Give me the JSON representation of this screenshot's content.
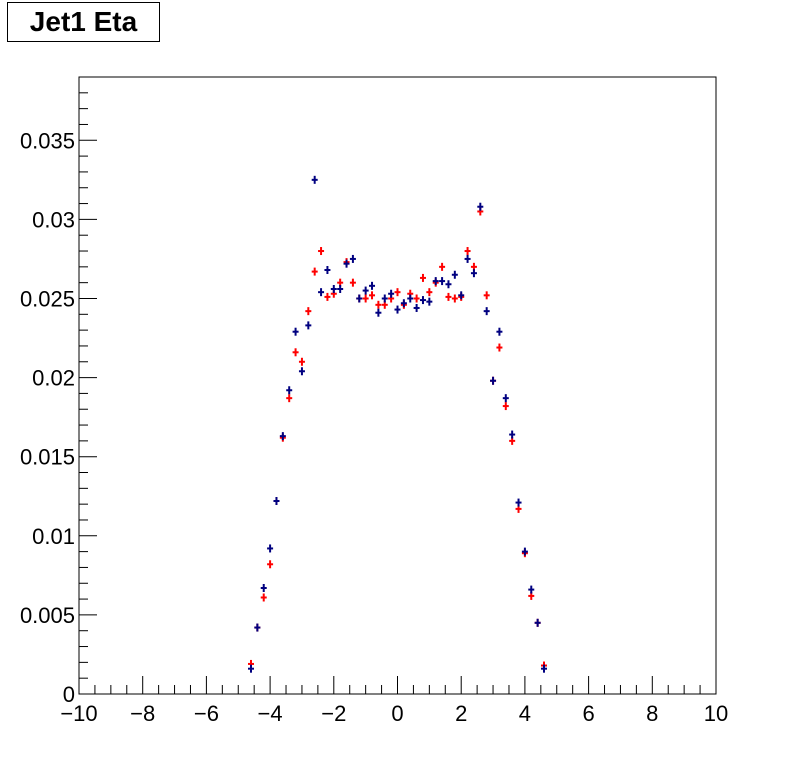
{
  "chart_data": {
    "type": "scatter",
    "title": "Jet1 Eta",
    "xlim": [
      -10,
      10
    ],
    "ylim": [
      0,
      0.039
    ],
    "x_tick_labels": [
      "−10",
      "−8",
      "−6",
      "−4",
      "−2",
      "0",
      "2",
      "4",
      "6",
      "8",
      "10"
    ],
    "x_tick_values": [
      -10,
      -8,
      -6,
      -4,
      -2,
      0,
      2,
      4,
      6,
      8,
      10
    ],
    "y_tick_labels": [
      "0",
      "0.005",
      "0.01",
      "0.015",
      "0.02",
      "0.025",
      "0.03",
      "0.035"
    ],
    "y_tick_values": [
      0,
      0.005,
      0.01,
      0.015,
      0.02,
      0.025,
      0.03,
      0.035
    ],
    "marker": "cross",
    "series": [
      {
        "color": "#ff0000",
        "x": [
          -4.6,
          -4.4,
          -4.2,
          -4.0,
          -3.8,
          -3.6,
          -3.4,
          -3.2,
          -3.0,
          -2.8,
          -2.6,
          -2.4,
          -2.2,
          -2.0,
          -1.8,
          -1.6,
          -1.4,
          -1.2,
          -1.0,
          -0.8,
          -0.6,
          -0.4,
          -0.2,
          0.0,
          0.2,
          0.4,
          0.6,
          0.8,
          1.0,
          1.2,
          1.4,
          1.6,
          1.8,
          2.0,
          2.2,
          2.4,
          2.6,
          2.8,
          3.0,
          3.2,
          3.4,
          3.6,
          3.8,
          4.0,
          4.2,
          4.4,
          4.6
        ],
        "y": [
          0.0019,
          0.0042,
          0.0061,
          0.0082,
          0.0122,
          0.0162,
          0.0187,
          0.0216,
          0.021,
          0.0242,
          0.0267,
          0.028,
          0.0251,
          0.0253,
          0.026,
          0.0273,
          0.026,
          0.025,
          0.025,
          0.0252,
          0.0246,
          0.0246,
          0.025,
          0.0254,
          0.0246,
          0.0253,
          0.025,
          0.0263,
          0.0254,
          0.026,
          0.027,
          0.0251,
          0.025,
          0.0251,
          0.028,
          0.027,
          0.0305,
          0.0252,
          0.0198,
          0.0219,
          0.0182,
          0.016,
          0.0117,
          0.0089,
          0.0062,
          0.0045,
          0.0018
        ]
      },
      {
        "color": "#000080",
        "x": [
          -4.6,
          -4.4,
          -4.2,
          -4.0,
          -3.8,
          -3.6,
          -3.4,
          -3.2,
          -3.0,
          -2.8,
          -2.6,
          -2.4,
          -2.2,
          -2.0,
          -1.8,
          -1.6,
          -1.4,
          -1.2,
          -1.0,
          -0.8,
          -0.6,
          -0.4,
          -0.2,
          0.0,
          0.2,
          0.4,
          0.6,
          0.8,
          1.0,
          1.2,
          1.4,
          1.6,
          1.8,
          2.0,
          2.2,
          2.4,
          2.6,
          2.8,
          3.0,
          3.2,
          3.4,
          3.6,
          3.8,
          4.0,
          4.2,
          4.4,
          4.6
        ],
        "y": [
          0.0016,
          0.0042,
          0.0067,
          0.0092,
          0.0122,
          0.0163,
          0.0192,
          0.0229,
          0.0204,
          0.0233,
          0.0325,
          0.0254,
          0.0268,
          0.0256,
          0.0256,
          0.0272,
          0.0275,
          0.025,
          0.0255,
          0.0258,
          0.0241,
          0.025,
          0.0253,
          0.0243,
          0.0247,
          0.025,
          0.0244,
          0.0249,
          0.0248,
          0.0261,
          0.0261,
          0.0259,
          0.0265,
          0.0252,
          0.0275,
          0.0266,
          0.0308,
          0.0242,
          0.0198,
          0.0229,
          0.0187,
          0.0164,
          0.0121,
          0.009,
          0.0066,
          0.0045,
          0.0016
        ]
      }
    ]
  }
}
